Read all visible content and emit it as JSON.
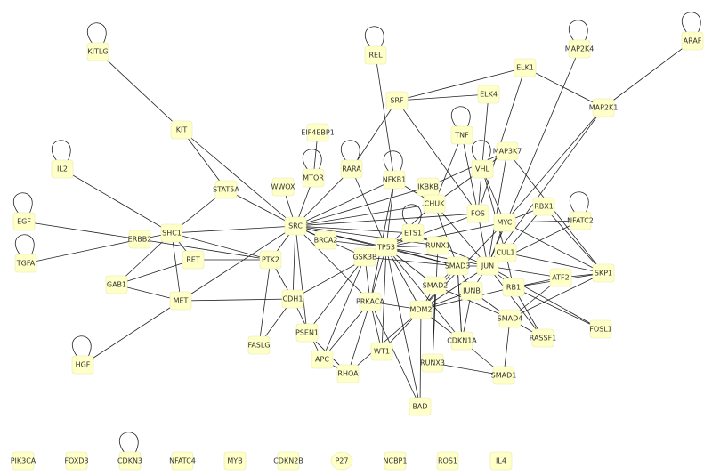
{
  "nodes": [
    "KITLG",
    "KIT",
    "IL2",
    "STAT5A",
    "SHC1",
    "ERBB2",
    "EGF",
    "TGFA",
    "RET",
    "GAB1",
    "MET",
    "HGF",
    "REL",
    "SRF",
    "ELK1",
    "ELK4",
    "MAP2K4",
    "ARAF",
    "MAP2K1",
    "EIF4EBP1",
    "MTOR",
    "WWOX",
    "RARA",
    "NFKB1",
    "IKBKB",
    "TNF",
    "MAP3K7",
    "VHL",
    "CHUK",
    "FOS",
    "MYC",
    "RBX1",
    "NFATC2",
    "SRC",
    "BRCA2",
    "PTK2",
    "TP53",
    "GSK3B",
    "ETS1",
    "RUNX1",
    "SMAD3",
    "CUL1",
    "JUN",
    "ATF2",
    "SKP1",
    "RB1",
    "SMAD2",
    "JUNB",
    "CDH1",
    "PRKACA",
    "MDM2",
    "SMAD4",
    "FOSL1",
    "RASSF1",
    "CDKN1A",
    "FASLG",
    "PSEN1",
    "APC",
    "RHOA",
    "WT1",
    "RUNX3",
    "SMAD1",
    "BAD",
    "PIK3CA",
    "FOXD3",
    "CDKN3",
    "NFATC4",
    "MYB",
    "CDKN2B",
    "P27",
    "NCBP1",
    "ROS1",
    "IL4"
  ]
}
